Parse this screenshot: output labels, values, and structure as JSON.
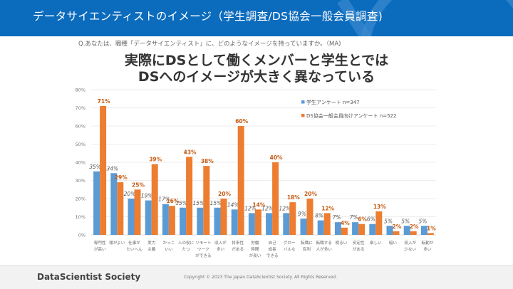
{
  "header": {
    "title": "データサイエンティストのイメージ（学生調査/DS協会一般会員調査)"
  },
  "question": "Q.あなたは、職種「データサイエンティスト」に、どのようなイメージを持っていますか。（MA)",
  "headline": [
    "実際にDSとして働くメンバーと学生とでは",
    "DSへのイメージが大きく異なっている"
  ],
  "footer": {
    "brand": "DataScientist Society",
    "copyright": "Copyright © 2023  The Japan DataScientist Society. All Rights Reserved."
  },
  "chart_data": {
    "type": "bar",
    "ylim": [
      0,
      80
    ],
    "yticks": [
      "0%",
      "10%",
      "20%",
      "30%",
      "40%",
      "50%",
      "60%",
      "70%",
      "80%"
    ],
    "grid": true,
    "legend_position": "top-right",
    "categories": [
      [
        "専門性",
        "が高い"
      ],
      [
        "頭がよい"
      ],
      [
        "仕事が",
        "たいへん"
      ],
      [
        "実力",
        "主義"
      ],
      [
        "かっこ",
        "いい"
      ],
      [
        "人の役に",
        "たつ"
      ],
      [
        "リモート",
        "ワーク",
        "ができる"
      ],
      [
        "収入が",
        "多い"
      ],
      [
        "将来性",
        "がある"
      ],
      [
        "労働",
        "時間",
        "が長い"
      ],
      [
        "自己",
        "成長",
        "できる"
      ],
      [
        "グロー",
        "バルな"
      ],
      [
        "転職に",
        "有利"
      ],
      [
        "転職する",
        "人が多い"
      ],
      [
        "明るい"
      ],
      [
        "安定性",
        "がある"
      ],
      [
        "楽しい"
      ],
      [
        "暗い"
      ],
      [
        "収入が",
        "少ない"
      ],
      [
        "転勤が",
        "多い"
      ]
    ],
    "series": [
      {
        "name": "学生アンケート n=347",
        "color": "#5b9bd5",
        "values": [
          35,
          34,
          20,
          19,
          17,
          15,
          15,
          15,
          14,
          12,
          12,
          12,
          9,
          8,
          7,
          7,
          6,
          5,
          5,
          5
        ]
      },
      {
        "name": "DS協会一般会員向けアンケート n=522",
        "color": "#ed7d31",
        "values": [
          71,
          29,
          25,
          39,
          16,
          43,
          38,
          20,
          60,
          14,
          40,
          18,
          20,
          12,
          4,
          6,
          13,
          2,
          2,
          1
        ]
      }
    ]
  }
}
